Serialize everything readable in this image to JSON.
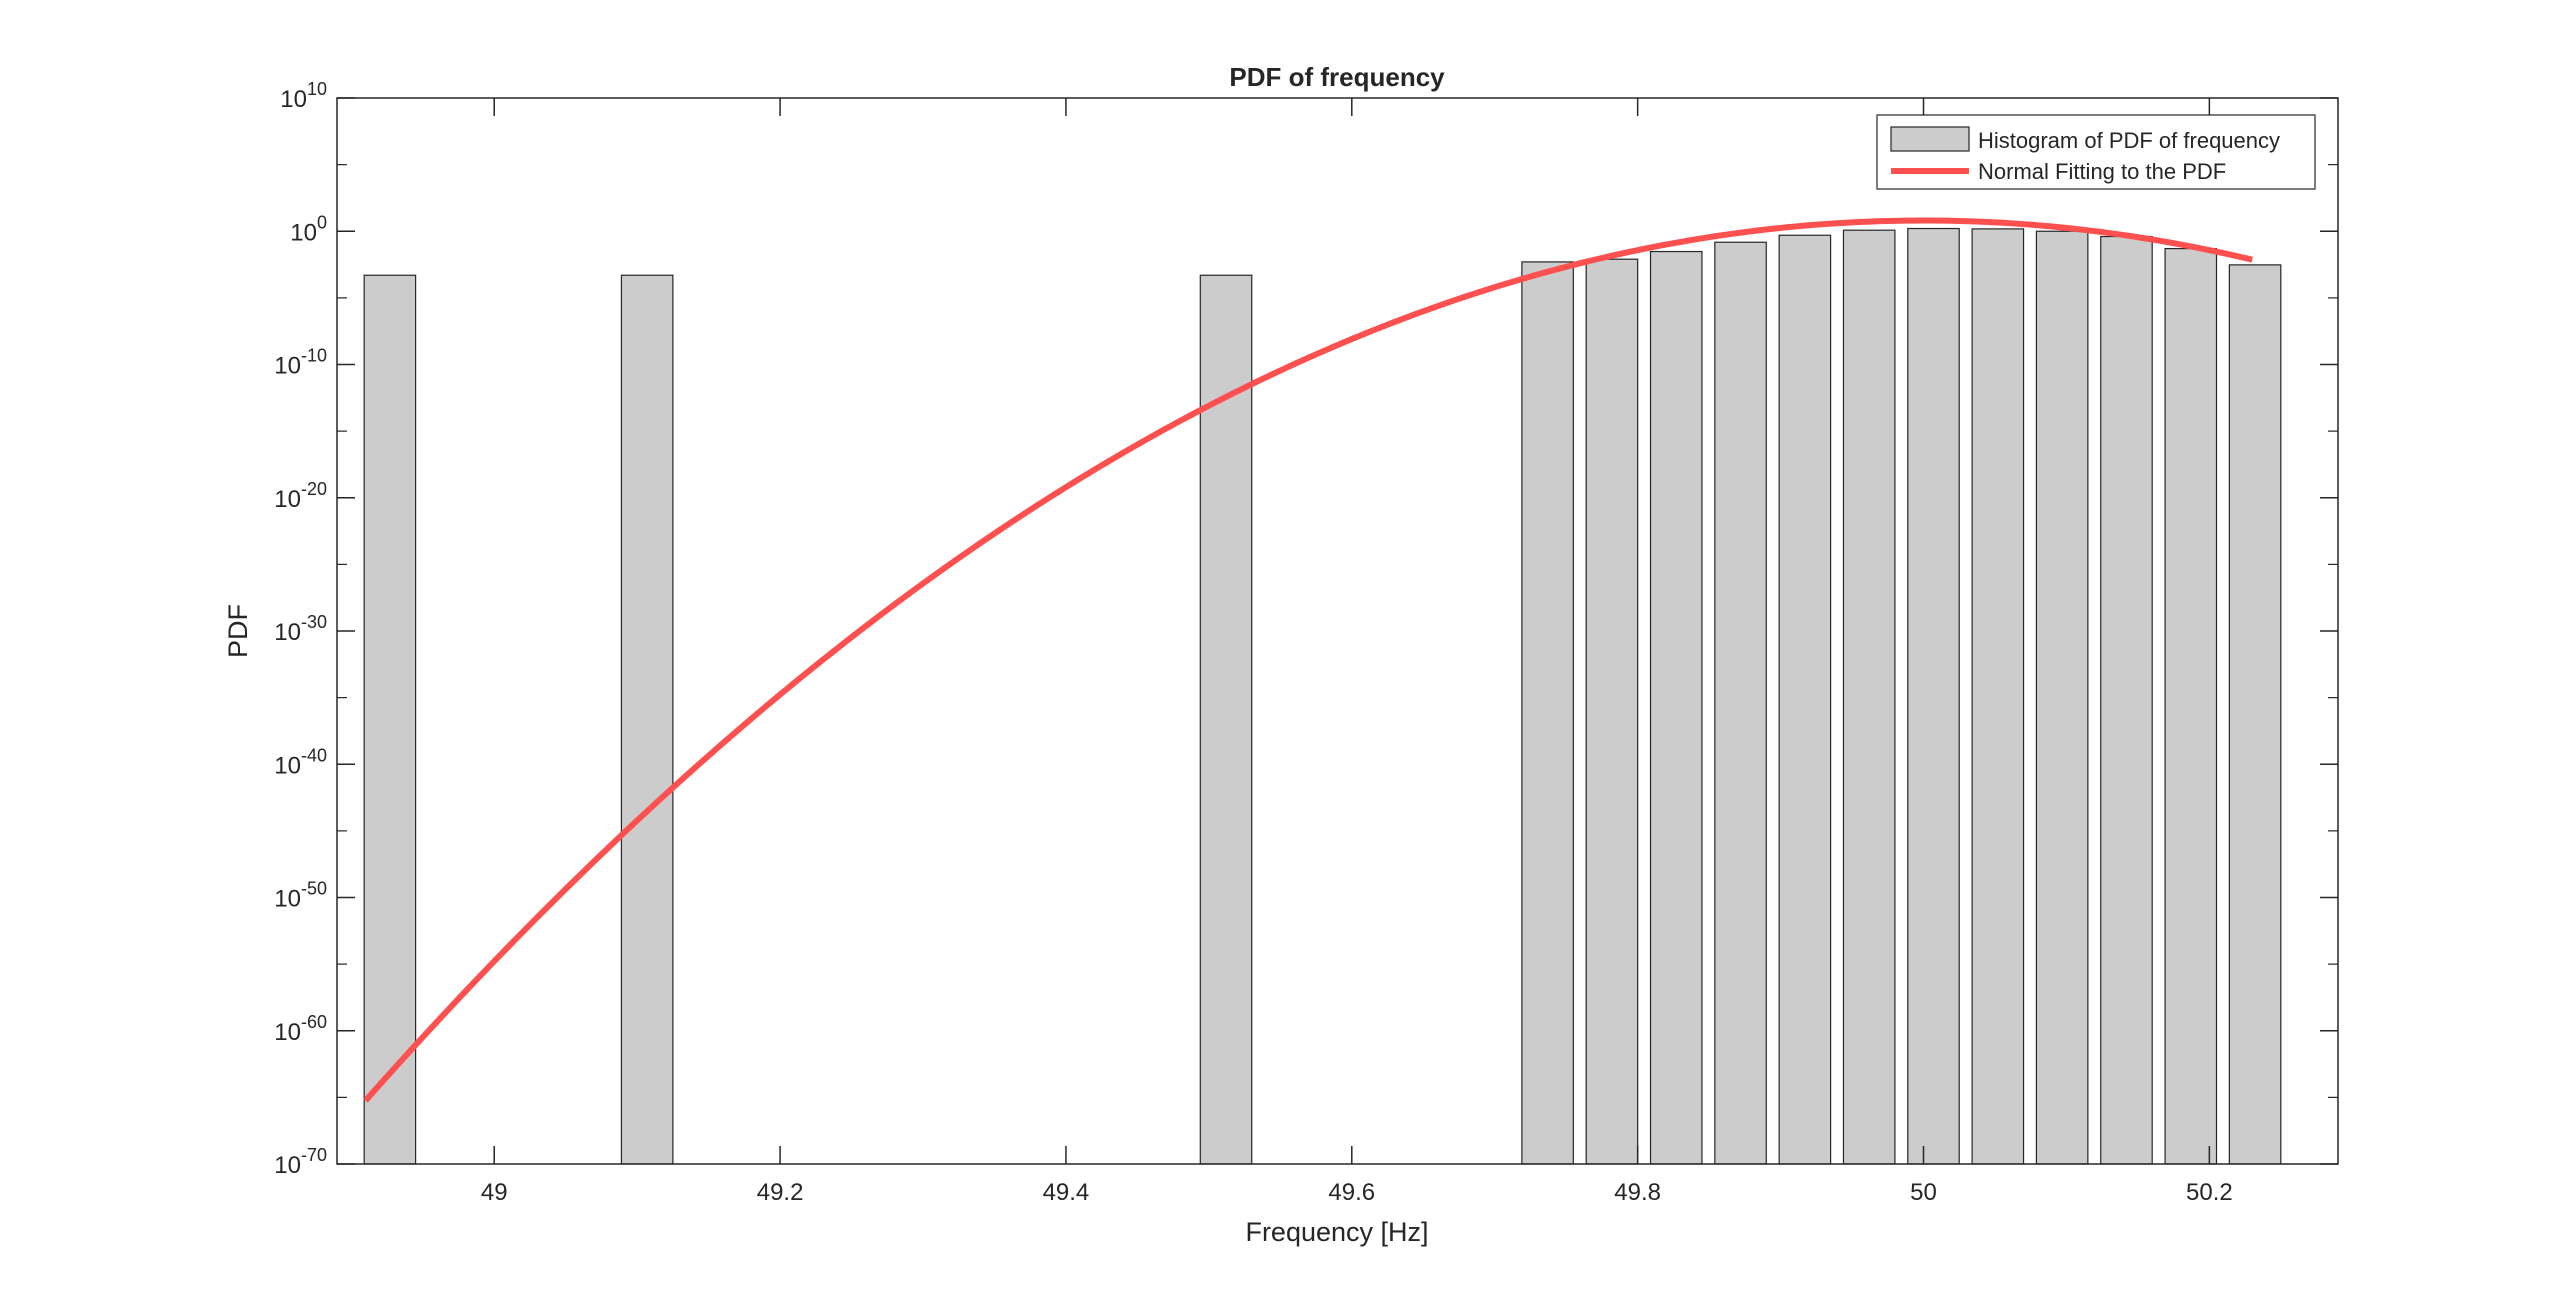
{
  "chart_data": {
    "type": "bar",
    "title": "PDF of frequency",
    "xlabel": "Frequency [Hz]",
    "ylabel": "PDF",
    "xlim": [
      48.89,
      50.29
    ],
    "ylim_log10": [
      -70,
      10
    ],
    "yscale": "log",
    "grid": false,
    "legend_position": "top-right",
    "x_ticks": [
      {
        "value": 49.0,
        "label": "49"
      },
      {
        "value": 49.2,
        "label": "49.2"
      },
      {
        "value": 49.4,
        "label": "49.4"
      },
      {
        "value": 49.6,
        "label": "49.6"
      },
      {
        "value": 49.8,
        "label": "49.8"
      },
      {
        "value": 50.0,
        "label": "50"
      },
      {
        "value": 50.2,
        "label": "50.2"
      }
    ],
    "y_ticks": [
      {
        "exp": 10,
        "base": "10",
        "sup": "10"
      },
      {
        "exp": 0,
        "base": "10",
        "sup": "0"
      },
      {
        "exp": -10,
        "base": "10",
        "sup": "-10"
      },
      {
        "exp": -20,
        "base": "10",
        "sup": "-20"
      },
      {
        "exp": -30,
        "base": "10",
        "sup": "-30"
      },
      {
        "exp": -40,
        "base": "10",
        "sup": "-40"
      },
      {
        "exp": -50,
        "base": "10",
        "sup": "-50"
      },
      {
        "exp": -60,
        "base": "10",
        "sup": "-60"
      },
      {
        "exp": -70,
        "base": "10",
        "sup": "-70"
      }
    ],
    "series": [
      {
        "name": "Histogram of PDF of frequency",
        "kind": "bar",
        "color": "#cccccc",
        "edge_color": "#262626",
        "bin_width": 0.036,
        "bins": [
          {
            "x": 48.927,
            "value": 0.0005
          },
          {
            "x": 49.107,
            "value": 0.0005
          },
          {
            "x": 49.512,
            "value": 0.0005
          },
          {
            "x": 49.737,
            "value": 0.005
          },
          {
            "x": 49.782,
            "value": 0.008
          },
          {
            "x": 49.827,
            "value": 0.03
          },
          {
            "x": 49.872,
            "value": 0.15
          },
          {
            "x": 49.917,
            "value": 0.5
          },
          {
            "x": 49.962,
            "value": 1.2
          },
          {
            "x": 50.007,
            "value": 1.6
          },
          {
            "x": 50.052,
            "value": 1.5
          },
          {
            "x": 50.097,
            "value": 1.0
          },
          {
            "x": 50.142,
            "value": 0.4
          },
          {
            "x": 50.187,
            "value": 0.05
          },
          {
            "x": 50.232,
            "value": 0.003
          }
        ]
      },
      {
        "name": "Normal Fitting to the PDF",
        "kind": "line",
        "color": "#ff5050",
        "mean": 50.0,
        "sigma": 0.0625,
        "x_start": 48.91,
        "x_end": 50.23
      }
    ]
  }
}
